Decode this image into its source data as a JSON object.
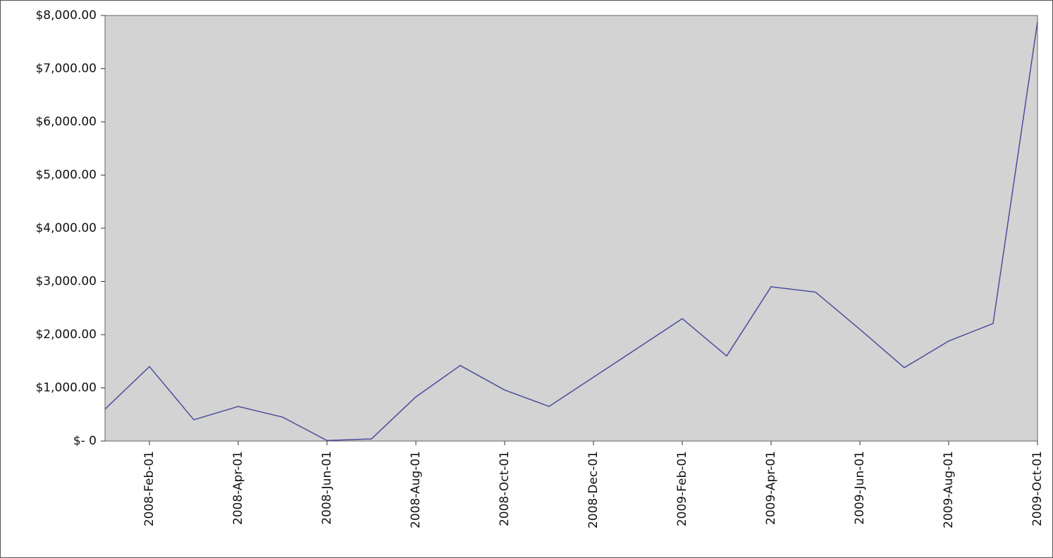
{
  "chart_data": {
    "type": "line",
    "categories": [
      null,
      "2008-Feb-01",
      null,
      "2008-Apr-01",
      null,
      "2008-Jun-01",
      null,
      "2008-Aug-01",
      null,
      "2008-Oct-01",
      null,
      "2008-Dec-01",
      null,
      "2009-Feb-01",
      null,
      "2009-Apr-01",
      null,
      "2009-Jun-01",
      null,
      "2009-Aug-01",
      null,
      "2009-Oct-01"
    ],
    "series": [
      {
        "color": "#4d4d9c",
        "values": [
          600,
          1400,
          400,
          650,
          450,
          10,
          40,
          830,
          1420,
          960,
          650,
          1200,
          1750,
          2300,
          1600,
          2900,
          2800,
          2100,
          1380,
          1880,
          2210,
          7880
        ]
      }
    ],
    "ylim": [
      0,
      8000
    ],
    "yticks": [
      {
        "value": 0,
        "label": "$- 0"
      },
      {
        "value": 1000,
        "label": "$1,000.00"
      },
      {
        "value": 2000,
        "label": "$2,000.00"
      },
      {
        "value": 3000,
        "label": "$3,000.00"
      },
      {
        "value": 4000,
        "label": "$4,000.00"
      },
      {
        "value": 5000,
        "label": "$5,000.00"
      },
      {
        "value": 6000,
        "label": "$6,000.00"
      },
      {
        "value": 7000,
        "label": "$7,000.00"
      },
      {
        "value": 8000,
        "label": "$8,000.00"
      }
    ],
    "grid": false
  }
}
